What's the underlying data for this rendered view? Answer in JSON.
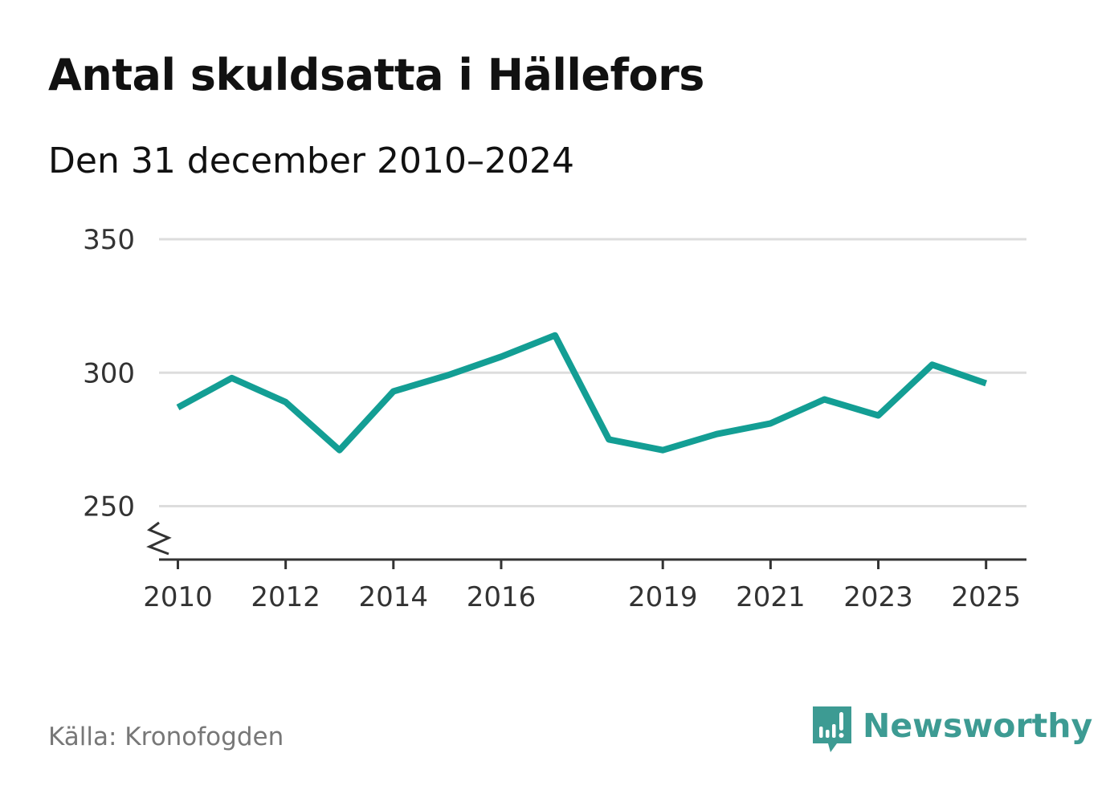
{
  "header": {
    "title": "Antal skuldsatta i Hällefors",
    "subtitle": "Den 31 december 2010–2024"
  },
  "footer": {
    "source": "Källa: Kronofogden",
    "brand": "Newsworthy"
  },
  "colors": {
    "line": "#139e94",
    "grid": "#dddddd",
    "axis": "#333333",
    "brand": "#3d9b93"
  },
  "chart_data": {
    "type": "line",
    "title": "Antal skuldsatta i Hällefors",
    "subtitle": "Den 31 december 2010–2024",
    "xlabel": "",
    "ylabel": "",
    "ylim": [
      230,
      350
    ],
    "xlim": [
      2009.65,
      2025.75
    ],
    "y_ticks": [
      250,
      300,
      350
    ],
    "x_ticks": [
      2010,
      2012,
      2014,
      2016,
      2019,
      2021,
      2023,
      2025
    ],
    "axis_break": true,
    "grid": true,
    "series": [
      {
        "name": "Antal skuldsatta",
        "x": [
          2010,
          2011,
          2012,
          2013,
          2014,
          2015,
          2016,
          2017,
          2018,
          2019,
          2020,
          2021,
          2022,
          2023,
          2024,
          2025
        ],
        "values": [
          287,
          298,
          289,
          271,
          293,
          299,
          306,
          314,
          275,
          271,
          277,
          281,
          290,
          284,
          303,
          296
        ]
      }
    ]
  }
}
